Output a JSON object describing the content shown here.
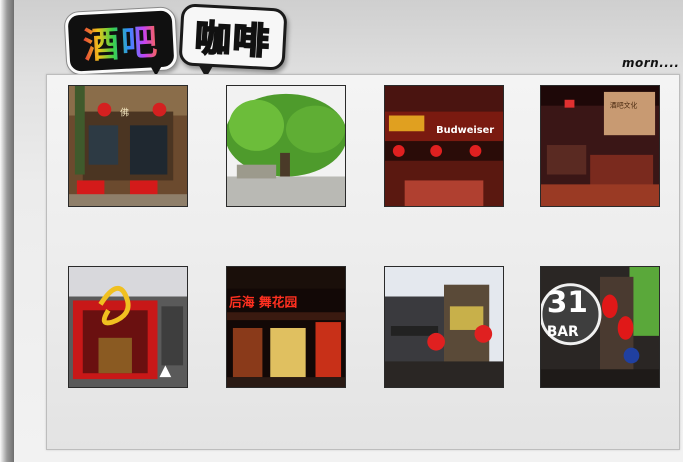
{
  "header": {
    "title_1": "酒吧",
    "title_2": "咖啡",
    "more_label": "morn...."
  },
  "gallery": {
    "items": [
      {
        "name": "thumb-bar-courtyard",
        "label": "佛"
      },
      {
        "name": "thumb-tree-street"
      },
      {
        "name": "thumb-budweiser-bar",
        "label": "Budweiser"
      },
      {
        "name": "thumb-interior-lounge",
        "label": "酒吧文化"
      },
      {
        "name": "thumb-red-gate-bar"
      },
      {
        "name": "thumb-neon-garden",
        "label": "后海 舞花园"
      },
      {
        "name": "thumb-street-lanterns"
      },
      {
        "name": "thumb-31-bar",
        "label_num": "31",
        "label_bar": "BAR"
      }
    ]
  },
  "colors": {
    "accent_red": "#c8102e",
    "frame": "#2a2a2a",
    "panel": "#ececec"
  }
}
